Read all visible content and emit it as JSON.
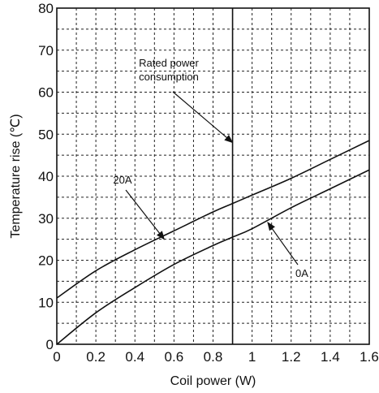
{
  "chart_data": {
    "type": "line",
    "xlabel": "Coil power (W)",
    "ylabel": "Temperature rise (℃)",
    "xlim": [
      0,
      1.6
    ],
    "ylim": [
      0,
      80
    ],
    "grid": true,
    "x_ticks": [
      "0",
      "0.2",
      "0.4",
      "0.6",
      "0.8",
      "1",
      "1.2",
      "1.4",
      "1.6"
    ],
    "y_ticks": [
      "0",
      "10",
      "20",
      "30",
      "40",
      "50",
      "60",
      "70",
      "80"
    ],
    "series": [
      {
        "name": "20A",
        "x": [
          0,
          0.2,
          0.4,
          0.6,
          0.8,
          0.9,
          1.0,
          1.2,
          1.4,
          1.6
        ],
        "y": [
          11,
          17.5,
          22.5,
          27,
          31.5,
          33.5,
          35.5,
          39.5,
          44,
          48.5
        ]
      },
      {
        "name": "0A",
        "x": [
          0,
          0.2,
          0.4,
          0.6,
          0.8,
          0.9,
          1.0,
          1.2,
          1.4,
          1.6
        ],
        "y": [
          0,
          7.5,
          13.5,
          19,
          23.5,
          25.5,
          27.5,
          32.5,
          37,
          41.5
        ]
      }
    ],
    "reference_line": {
      "x": 0.9
    },
    "annotations": [
      {
        "lines": [
          "Rated power",
          "consumption"
        ],
        "target": {
          "x": 0.9,
          "y": 48
        }
      },
      {
        "lines": [
          "20A"
        ],
        "target": {
          "x": 0.55,
          "y": 25
        }
      },
      {
        "lines": [
          "0A"
        ],
        "target": {
          "x": 1.08,
          "y": 29
        }
      }
    ]
  }
}
